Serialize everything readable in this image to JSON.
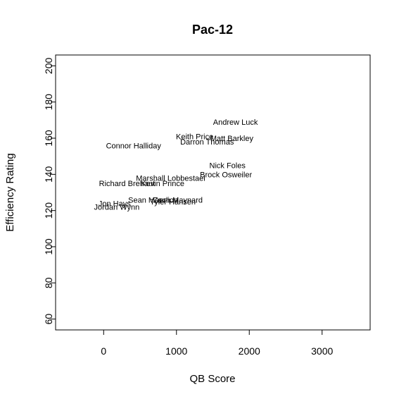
{
  "chart_data": {
    "type": "scatter",
    "title": "Pac-12",
    "xlabel": "QB Score",
    "ylabel": "Efficiency Rating",
    "xlim": [
      -660,
      3660
    ],
    "ylim": [
      54,
      206
    ],
    "xticks": [
      0,
      1000,
      2000,
      3000
    ],
    "yticks": [
      60,
      80,
      100,
      120,
      140,
      160,
      180,
      200
    ],
    "grid": false,
    "points": [
      {
        "label": "Andrew Luck",
        "x": 1810,
        "y": 169
      },
      {
        "label": "Keith Price",
        "x": 1250,
        "y": 161
      },
      {
        "label": "Matt Barkley",
        "x": 1760,
        "y": 160
      },
      {
        "label": "Darron Thomas",
        "x": 1420,
        "y": 158
      },
      {
        "label": "Connor Halliday",
        "x": 410,
        "y": 156
      },
      {
        "label": "Nick Foles",
        "x": 1700,
        "y": 145
      },
      {
        "label": "Brock Osweiler",
        "x": 1680,
        "y": 140
      },
      {
        "label": "Marshall Lobbestael",
        "x": 920,
        "y": 138
      },
      {
        "label": "Richard Brehaut",
        "x": 320,
        "y": 135
      },
      {
        "label": "Kevin Prince",
        "x": 810,
        "y": 135
      },
      {
        "label": "Sean Mannion",
        "x": 680,
        "y": 126
      },
      {
        "label": "Zach Maynard",
        "x": 1020,
        "y": 126
      },
      {
        "label": "Tyler Hansen",
        "x": 950,
        "y": 125
      },
      {
        "label": "Jon Hays",
        "x": 150,
        "y": 124
      },
      {
        "label": "Jordan Wynn",
        "x": 180,
        "y": 122
      }
    ]
  }
}
